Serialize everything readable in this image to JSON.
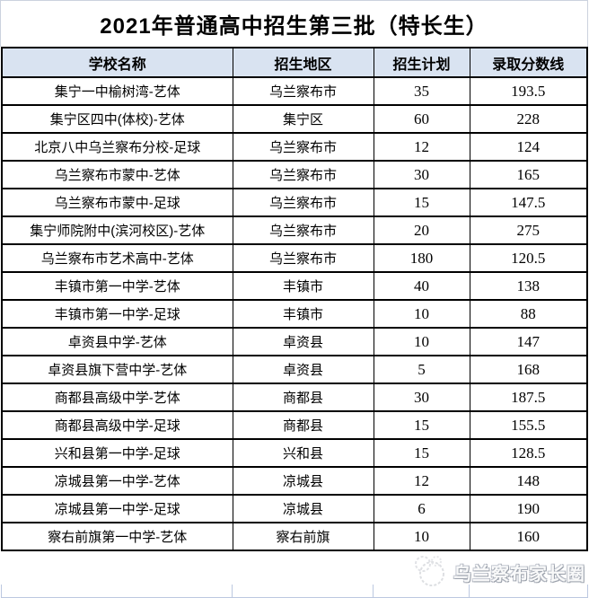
{
  "title": "2021年普通高中招生第三批（特长生）",
  "table": {
    "headers": [
      "学校名称",
      "招生地区",
      "招生计划",
      "录取分数线"
    ],
    "rows": [
      [
        "集宁一中榆树湾-艺体",
        "乌兰察布市",
        "35",
        "193.5"
      ],
      [
        "集宁区四中(体校)-艺体",
        "集宁区",
        "60",
        "228"
      ],
      [
        "北京八中乌兰察布分校-足球",
        "乌兰察布市",
        "12",
        "124"
      ],
      [
        "乌兰察布市蒙中-艺体",
        "乌兰察布市",
        "30",
        "165"
      ],
      [
        "乌兰察布市蒙中-足球",
        "乌兰察布市",
        "15",
        "147.5"
      ],
      [
        "集宁师院附中(滨河校区)-艺体",
        "乌兰察布市",
        "20",
        "275"
      ],
      [
        "乌兰察布市艺术高中-艺体",
        "乌兰察布市",
        "180",
        "120.5"
      ],
      [
        "丰镇市第一中学-艺体",
        "丰镇市",
        "40",
        "138"
      ],
      [
        "丰镇市第一中学-足球",
        "丰镇市",
        "10",
        "88"
      ],
      [
        "卓资县中学-艺体",
        "卓资县",
        "10",
        "147"
      ],
      [
        "卓资县旗下营中学-艺体",
        "卓资县",
        "5",
        "168"
      ],
      [
        "商都县高级中学-艺体",
        "商都县",
        "30",
        "187.5"
      ],
      [
        "商都县高级中学-足球",
        "商都县",
        "15",
        "155.5"
      ],
      [
        "兴和县第一中学-足球",
        "兴和县",
        "15",
        "128.5"
      ],
      [
        "凉城县第一中学-艺体",
        "凉城县",
        "12",
        "148"
      ],
      [
        "凉城县第一中学-足球",
        "凉城县",
        "6",
        "190"
      ],
      [
        "察右前旗第一中学-艺体",
        "察右前旗",
        "10",
        "160"
      ]
    ]
  },
  "watermark": {
    "text": "乌兰察布家长圈",
    "logo": "parents-circle-logo"
  },
  "colors": {
    "header_bg": "#d9e3f1",
    "table_border": "#000000",
    "title_border": "#ccd2de",
    "partial_row_border": "#bcc8e0"
  }
}
